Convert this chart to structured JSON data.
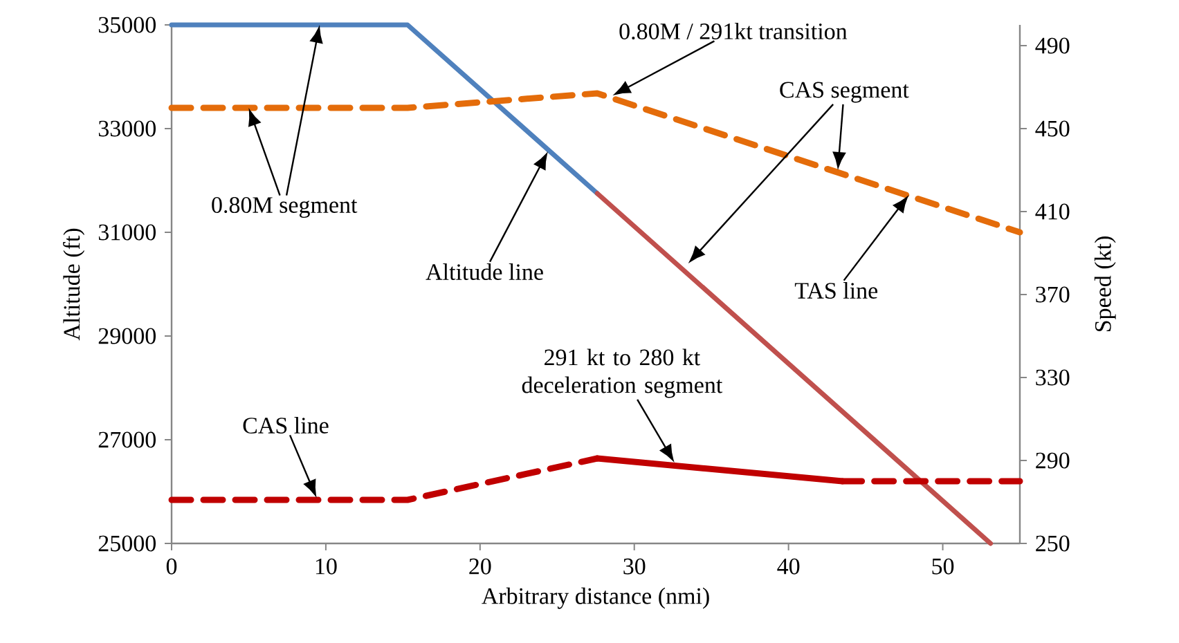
{
  "chart_data": {
    "type": "line",
    "xlabel": "Arbitrary distance (nmi)",
    "ylabel": "Altitude (ft)",
    "y2label": "Speed (kt)",
    "xlim": [
      0,
      55
    ],
    "xticks": [
      0,
      10,
      20,
      30,
      40,
      50
    ],
    "ylim": [
      25000,
      35000
    ],
    "yticks": [
      25000,
      27000,
      29000,
      31000,
      33000,
      35000
    ],
    "y2lim": [
      250,
      500
    ],
    "y2ticks": [
      250,
      290,
      330,
      370,
      410,
      450,
      490
    ],
    "grid": false,
    "legend": false,
    "series": [
      {
        "color": "#4f81bd",
        "line_style": "solid",
        "x": [
          0,
          15.3,
          27.6
        ],
        "values": [
          35000,
          35000,
          31750
        ]
      },
      {
        "color": "#c0504d",
        "line_style": "solid",
        "x": [
          27.6,
          53.1
        ],
        "values": [
          31750,
          25000
        ]
      },
      {
        "color": "#e46c0a",
        "line_style": "dashed",
        "axis": "y2",
        "x": [
          0,
          15.3,
          27.6,
          55
        ],
        "values": [
          460,
          460,
          467,
          400
        ]
      },
      {
        "color": "#c00000",
        "line_style": "dashed",
        "axis": "y2",
        "x": [
          0,
          15.3,
          27.6
        ],
        "values": [
          271,
          271,
          291
        ]
      },
      {
        "color": "#c00000",
        "line_style": "solid",
        "axis": "y2",
        "x": [
          27.6,
          43.5
        ],
        "values": [
          291,
          280
        ]
      },
      {
        "color": "#c00000",
        "line_style": "dashed",
        "axis": "y2",
        "x": [
          43.5,
          55
        ],
        "values": [
          280,
          280
        ]
      }
    ],
    "annotations": [
      "0.80M segment",
      "0.80M / 291kt transition",
      "Altitude line",
      "CAS segment",
      "TAS line",
      "291 kt to 280 kt deceleration segment",
      "CAS line"
    ]
  }
}
